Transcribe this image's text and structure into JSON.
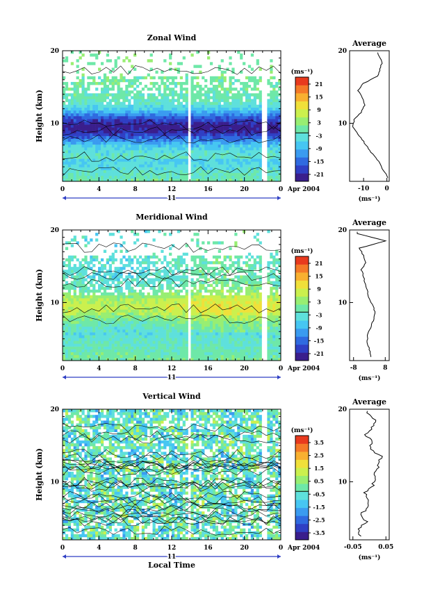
{
  "panels": [
    {
      "id": "zonal",
      "title": "Zonal Wind",
      "ylabel": "Height (km)",
      "yticks": [
        "20",
        "10"
      ],
      "xticks": [
        "0",
        "4",
        "8",
        "12",
        "16",
        "20",
        "0"
      ],
      "day_label": "11",
      "date_label": "Apr 2004",
      "colorbar_unit": "(ms⁻¹)",
      "colorbar_ticks": [
        "21",
        "15",
        "9",
        "3",
        "-3",
        "-9",
        "-15",
        "-21"
      ],
      "avg_title": "Average",
      "avg_yticks": [
        "20",
        "10"
      ],
      "avg_xticks": [
        "-10",
        "0"
      ],
      "avg_unit": "(ms⁻¹)"
    },
    {
      "id": "meridional",
      "title": "Meridional Wind",
      "ylabel": "Height (km)",
      "yticks": [
        "20",
        "10"
      ],
      "xticks": [
        "0",
        "4",
        "8",
        "12",
        "16",
        "20",
        "0"
      ],
      "day_label": "11",
      "date_label": "Apr 2004",
      "colorbar_unit": "(ms⁻¹)",
      "colorbar_ticks": [
        "21",
        "15",
        "9",
        "3",
        "-3",
        "-9",
        "-15",
        "-21"
      ],
      "avg_title": "Average",
      "avg_yticks": [
        "20",
        "10"
      ],
      "avg_xticks": [
        "-8",
        "8"
      ],
      "avg_unit": "(ms⁻¹)"
    },
    {
      "id": "vertical",
      "title": "Vertical Wind",
      "ylabel": "Height (km)",
      "yticks": [
        "20",
        "10"
      ],
      "xticks": [
        "0",
        "4",
        "8",
        "12",
        "16",
        "20",
        "0"
      ],
      "day_label": "11",
      "date_label": "Apr 2004",
      "xlabel": "Local Time",
      "colorbar_unit": "(ms⁻¹)",
      "colorbar_ticks": [
        "3.5",
        "2.5",
        "1.5",
        "0.5",
        "-0.5",
        "-1.5",
        "-2.5",
        "-3.5"
      ],
      "avg_title": "Average",
      "avg_yticks": [
        "20",
        "10"
      ],
      "avg_xticks": [
        "-0.05",
        "0.05"
      ],
      "avg_unit": "(ms⁻¹)"
    }
  ],
  "colors": {
    "scale": [
      "#3a1e8c",
      "#2f3fc4",
      "#2f6ae0",
      "#3a9bf0",
      "#46c6f2",
      "#5ee0dc",
      "#6ee8a8",
      "#98ee72",
      "#cbf04e",
      "#f0e03a",
      "#f8b030",
      "#f47a28",
      "#e83a1e"
    ]
  },
  "chart_data": [
    {
      "type": "heatmap",
      "title": "Zonal Wind",
      "xlabel": "",
      "ylabel": "Height (km)",
      "xlim": [
        0,
        24
      ],
      "ylim": [
        2,
        20
      ],
      "colorbar_range": [
        -21,
        21
      ],
      "profile": {
        "title": "Average",
        "xlim": [
          -16,
          1
        ],
        "height": [
          2.5,
          3.5,
          4.5,
          5.5,
          6.5,
          7.5,
          8.5,
          9.5,
          10.5,
          11.5,
          12.5,
          13.5,
          14.5,
          15.5,
          16.5,
          17.5,
          18.5,
          19.5
        ],
        "value": [
          0.5,
          -1.5,
          -3,
          -5.5,
          -8,
          -10,
          -12.5,
          -14.5,
          -14,
          -11,
          -9.5,
          -10.5,
          -12.5,
          -10,
          -4,
          -3,
          -2,
          -4
        ]
      }
    },
    {
      "type": "heatmap",
      "title": "Meridional Wind",
      "xlabel": "",
      "ylabel": "Height (km)",
      "xlim": [
        0,
        24
      ],
      "ylim": [
        2,
        20
      ],
      "colorbar_range": [
        -21,
        21
      ],
      "profile": {
        "title": "Average",
        "xlim": [
          -10,
          10
        ],
        "height": [
          2.5,
          3.5,
          4.5,
          5.5,
          6.5,
          7.5,
          8.5,
          9.5,
          10.5,
          11.5,
          12.5,
          13.5,
          14.5,
          15.5,
          16.5,
          17.5,
          18.5,
          19.5
        ],
        "value": [
          0.5,
          0,
          -1,
          -1,
          0.5,
          2,
          3,
          2,
          0,
          -1,
          -2,
          -3,
          -4,
          -2,
          -3,
          -5,
          8,
          -6
        ]
      }
    },
    {
      "type": "heatmap",
      "title": "Vertical Wind",
      "xlabel": "Local Time",
      "ylabel": "Height (km)",
      "xlim": [
        0,
        24
      ],
      "ylim": [
        2,
        20
      ],
      "colorbar_range": [
        -3.5,
        3.5
      ],
      "profile": {
        "title": "Average",
        "xlim": [
          -0.06,
          0.06
        ],
        "height": [
          2.5,
          3.5,
          4.5,
          5.5,
          6.5,
          7.5,
          8.5,
          9.5,
          10.5,
          11.5,
          12.5,
          13.5,
          14.5,
          15.5,
          16.5,
          17.5,
          18.5,
          19.5
        ],
        "value": [
          -0.03,
          -0.035,
          -0.01,
          -0.025,
          -0.005,
          0.0,
          -0.015,
          0.01,
          0.015,
          0.02,
          0.03,
          0.035,
          0.0,
          0.01,
          -0.015,
          0.01,
          0.02,
          -0.01
        ]
      }
    }
  ]
}
